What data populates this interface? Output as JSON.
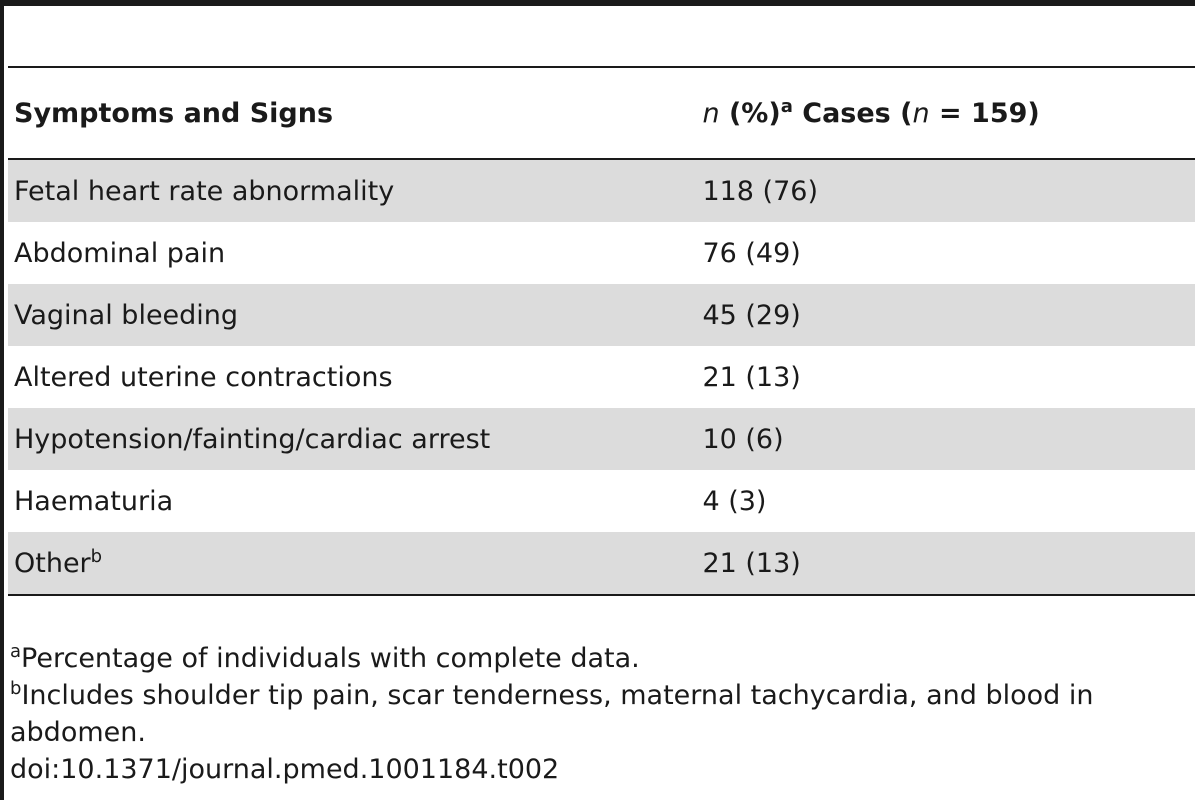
{
  "table": {
    "header": {
      "col1": "Symptoms and Signs",
      "col2_n": "n",
      "col2_pct": " (%)",
      "col2_sup": "a",
      "col2_cases": " Cases (",
      "col2_n2": "n",
      "col2_eq": " = 159)"
    },
    "rows": [
      {
        "label": "Fetal heart rate abnormality",
        "value": "118 (76)"
      },
      {
        "label": "Abdominal pain",
        "value": "76 (49)"
      },
      {
        "label": "Vaginal bleeding",
        "value": "45 (29)"
      },
      {
        "label": "Altered uterine contractions",
        "value": "21 (13)"
      },
      {
        "label": "Hypotension/fainting/cardiac arrest",
        "value": "10 (6)"
      },
      {
        "label": "Haematuria",
        "value": "4 (3)"
      },
      {
        "label": "Other",
        "label_sup": "b",
        "value": "21 (13)"
      }
    ]
  },
  "footnotes": {
    "a_mark": "a",
    "a_text": "Percentage of individuals with complete data.",
    "b_mark": "b",
    "b_text": "Includes shoulder tip pain, scar tenderness, maternal tachycardia, and blood in abdomen.",
    "doi": "doi:10.1371/journal.pmed.1001184.t002"
  }
}
